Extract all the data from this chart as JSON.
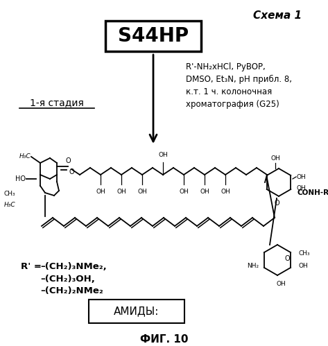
{
  "title_italic": "Схема 1",
  "box1_text": "S44HP",
  "stage_text": "1-я стадия",
  "reaction_conditions": "R'-NH₂xHCl, PyBOP,\nDMSO, Et₃N, pH прибл. 8,\nк.т. 1 ч. колоночная\nхроматография (G25)",
  "box2_text": "АМИДЫ:",
  "fig_label": "ФИГ. 10",
  "bg_color": "#ffffff",
  "text_color": "#000000",
  "fig_width": 4.73,
  "fig_height": 4.99,
  "dpi": 100
}
